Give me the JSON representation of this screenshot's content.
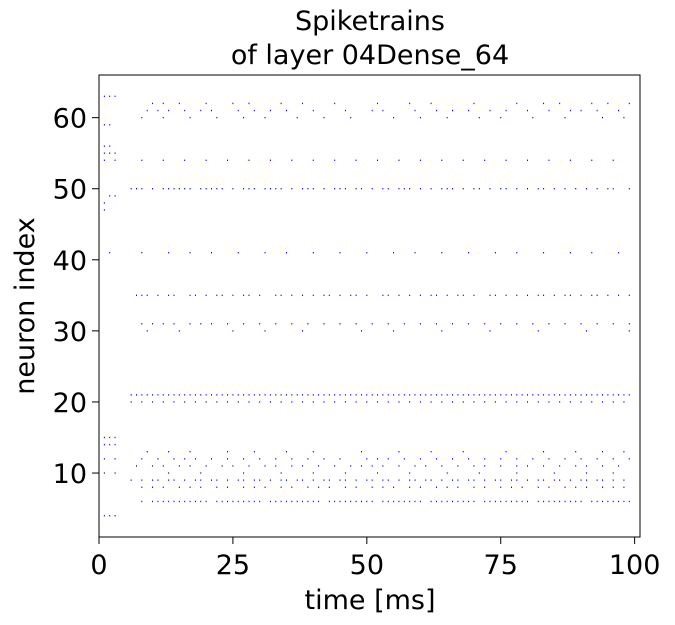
{
  "chart_data": {
    "type": "scatter",
    "title_lines": [
      "Spiketrains",
      "of layer 04Dense_64"
    ],
    "xlabel": "time [ms]",
    "ylabel": "neuron index",
    "xlim": [
      0,
      101
    ],
    "ylim": [
      1,
      66
    ],
    "xticks": [
      0,
      25,
      50,
      75,
      100
    ],
    "yticks": [
      10,
      20,
      30,
      40,
      50,
      60
    ],
    "grid": false,
    "legend": "none",
    "marker_color": "#0000ff",
    "series": [
      {
        "name": "",
        "rows": [
          {
            "neuron": 63,
            "times": [
              1,
              2,
              3
            ]
          },
          {
            "neuron": 62,
            "times": [
              10,
              12,
              15,
              20,
              25,
              28,
              34,
              38,
              44,
              52,
              58,
              62,
              70,
              78,
              83,
              86,
              92,
              95,
              99
            ]
          },
          {
            "neuron": 61,
            "times": [
              9,
              11,
              13,
              16,
              19,
              21,
              26,
              29,
              32,
              35,
              40,
              46,
              51,
              53,
              59,
              63,
              66,
              69,
              73,
              76,
              80,
              84,
              88,
              90,
              93,
              97
            ]
          },
          {
            "neuron": 60,
            "times": [
              8,
              12,
              17,
              22,
              27,
              31,
              37,
              42,
              47,
              55,
              60,
              65,
              71,
              75,
              81,
              87,
              94,
              98
            ]
          },
          {
            "neuron": 59,
            "times": [
              1,
              2
            ]
          },
          {
            "neuron": 56,
            "times": [
              1,
              2
            ]
          },
          {
            "neuron": 55,
            "times": [
              1,
              2,
              3
            ]
          },
          {
            "neuron": 54,
            "times": [
              1,
              3,
              8,
              12,
              16,
              20,
              24,
              28,
              32,
              36,
              40,
              44,
              48,
              52,
              56,
              60,
              64,
              68,
              72,
              76,
              80,
              84,
              88,
              92,
              96
            ]
          },
          {
            "neuron": 50,
            "times": [
              6,
              7,
              8,
              10,
              12,
              13,
              14,
              15,
              16,
              17,
              19,
              20,
              21,
              22,
              23,
              25,
              27,
              28,
              29,
              31,
              32,
              33,
              34,
              36,
              38,
              39,
              40,
              42,
              44,
              45,
              46,
              48,
              49,
              51,
              53,
              54,
              56,
              57,
              58,
              60,
              62,
              64,
              65,
              66,
              68,
              70,
              71,
              73,
              75,
              76,
              78,
              80,
              82,
              83,
              85,
              87,
              89,
              91,
              93,
              95,
              96,
              99
            ]
          },
          {
            "neuron": 49,
            "times": [
              2,
              3
            ]
          },
          {
            "neuron": 48,
            "times": [
              1
            ]
          },
          {
            "neuron": 47,
            "times": [
              1
            ]
          },
          {
            "neuron": 41,
            "times": [
              2,
              8,
              13,
              17,
              21,
              26,
              31,
              35,
              40,
              45,
              50,
              55,
              59,
              64,
              69,
              74,
              78,
              83,
              88,
              92,
              97
            ]
          },
          {
            "neuron": 35,
            "times": [
              7,
              8,
              9,
              11,
              13,
              14,
              17,
              18,
              20,
              22,
              23,
              25,
              27,
              28,
              30,
              33,
              34,
              36,
              38,
              40,
              42,
              43,
              45,
              47,
              48,
              50,
              53,
              54,
              56,
              58,
              60,
              62,
              63,
              65,
              67,
              68,
              70,
              73,
              74,
              76,
              78,
              80,
              82,
              83,
              85,
              87,
              88,
              90,
              92,
              93,
              95,
              97,
              99
            ]
          },
          {
            "neuron": 31,
            "times": [
              8,
              10,
              12,
              14,
              17,
              19,
              21,
              24,
              27,
              30,
              33,
              36,
              39,
              42,
              45,
              48,
              51,
              54,
              57,
              60,
              63,
              66,
              69,
              72,
              75,
              78,
              81,
              84,
              87,
              90,
              93,
              96,
              99
            ]
          },
          {
            "neuron": 30,
            "times": [
              9,
              15,
              25,
              31,
              38,
              49,
              55,
              64,
              73,
              82,
              91,
              99
            ]
          },
          {
            "neuron": 21,
            "times": [
              6,
              7,
              8,
              9,
              10,
              11,
              12,
              13,
              14,
              15,
              16,
              17,
              18,
              19,
              20,
              21,
              22,
              23,
              24,
              25,
              26,
              27,
              28,
              29,
              30,
              31,
              32,
              33,
              34,
              35,
              36,
              37,
              38,
              39,
              40,
              41,
              42,
              43,
              44,
              45,
              46,
              47,
              48,
              49,
              50,
              51,
              52,
              53,
              54,
              55,
              56,
              57,
              58,
              59,
              60,
              61,
              62,
              63,
              64,
              65,
              66,
              67,
              68,
              69,
              70,
              71,
              72,
              73,
              74,
              75,
              76,
              77,
              78,
              79,
              80,
              81,
              82,
              83,
              84,
              85,
              86,
              87,
              88,
              89,
              90,
              91,
              92,
              93,
              94,
              95,
              96,
              97,
              98,
              99
            ]
          },
          {
            "neuron": 20,
            "times": [
              6,
              8,
              10,
              12,
              14,
              16,
              18,
              20,
              22,
              24,
              26,
              28,
              30,
              32,
              34,
              36,
              38,
              40,
              42,
              44,
              46,
              48,
              50,
              52,
              54,
              56,
              58,
              60,
              62,
              64,
              66,
              68,
              70,
              72,
              74,
              76,
              78,
              80,
              82,
              84,
              86,
              88,
              90,
              92,
              94,
              96,
              98
            ]
          },
          {
            "neuron": 15,
            "times": [
              1,
              2,
              3
            ]
          },
          {
            "neuron": 14,
            "times": [
              1,
              2,
              3
            ]
          },
          {
            "neuron": 13,
            "times": [
              9,
              13,
              17,
              24,
              29,
              35,
              40,
              49,
              56,
              62,
              68,
              76,
              83,
              89,
              94,
              98
            ]
          },
          {
            "neuron": 12,
            "times": [
              1,
              3,
              8,
              11,
              14,
              16,
              18,
              21,
              24,
              27,
              30,
              33,
              36,
              39,
              42,
              45,
              50,
              52,
              54,
              57,
              60,
              63,
              66,
              69,
              72,
              75,
              78,
              81,
              84,
              87,
              90,
              93,
              96,
              99
            ]
          },
          {
            "neuron": 11,
            "times": [
              7,
              10,
              12,
              15,
              17,
              20,
              23,
              25,
              28,
              31,
              33,
              36,
              38,
              41,
              44,
              47,
              49,
              51,
              53,
              56,
              59,
              61,
              64,
              67,
              70,
              72,
              75,
              78,
              80,
              83,
              86,
              89,
              91,
              94,
              97
            ]
          },
          {
            "neuron": 10,
            "times": [
              1,
              3,
              13,
              19,
              27,
              34,
              40,
              46,
              52,
              58,
              65,
              71,
              78,
              85,
              91,
              96
            ]
          },
          {
            "neuron": 9,
            "times": [
              6,
              8,
              10,
              11,
              13,
              14,
              16,
              18,
              19,
              21,
              22,
              24,
              26,
              27,
              29,
              30,
              32,
              34,
              35,
              37,
              38,
              40,
              42,
              43,
              45,
              46,
              48,
              50,
              51,
              53,
              54,
              56,
              58,
              59,
              61,
              62,
              64,
              66,
              67,
              69,
              70,
              72,
              74,
              75,
              77,
              78,
              80,
              82,
              83,
              85,
              86,
              88,
              90,
              91,
              93,
              94,
              96,
              98
            ]
          },
          {
            "neuron": 8,
            "times": [
              8,
              10,
              12,
              15,
              17,
              19,
              22,
              24,
              27,
              29,
              31,
              34,
              36,
              39,
              41,
              43,
              46,
              48,
              51,
              53,
              55,
              58,
              60,
              63,
              65,
              67,
              70,
              72,
              75,
              77,
              79,
              82,
              84,
              87,
              89,
              91,
              94,
              96,
              98
            ]
          },
          {
            "neuron": 6,
            "times": [
              8,
              10,
              11,
              12,
              13,
              14,
              15,
              16,
              17,
              18,
              19,
              20,
              22,
              23,
              24,
              25,
              26,
              27,
              28,
              29,
              30,
              32,
              33,
              34,
              35,
              36,
              37,
              38,
              39,
              40,
              41,
              43,
              44,
              45,
              46,
              47,
              48,
              49,
              50,
              51,
              53,
              54,
              55,
              56,
              57,
              58,
              59,
              60,
              62,
              63,
              64,
              65,
              66,
              67,
              68,
              69,
              70,
              72,
              73,
              74,
              75,
              76,
              77,
              78,
              79,
              80,
              82,
              83,
              84,
              85,
              86,
              87,
              88,
              89,
              90,
              92,
              93,
              94,
              95,
              96,
              97,
              98,
              99
            ]
          },
          {
            "neuron": 4,
            "times": [
              1,
              2,
              3
            ]
          }
        ]
      }
    ]
  }
}
